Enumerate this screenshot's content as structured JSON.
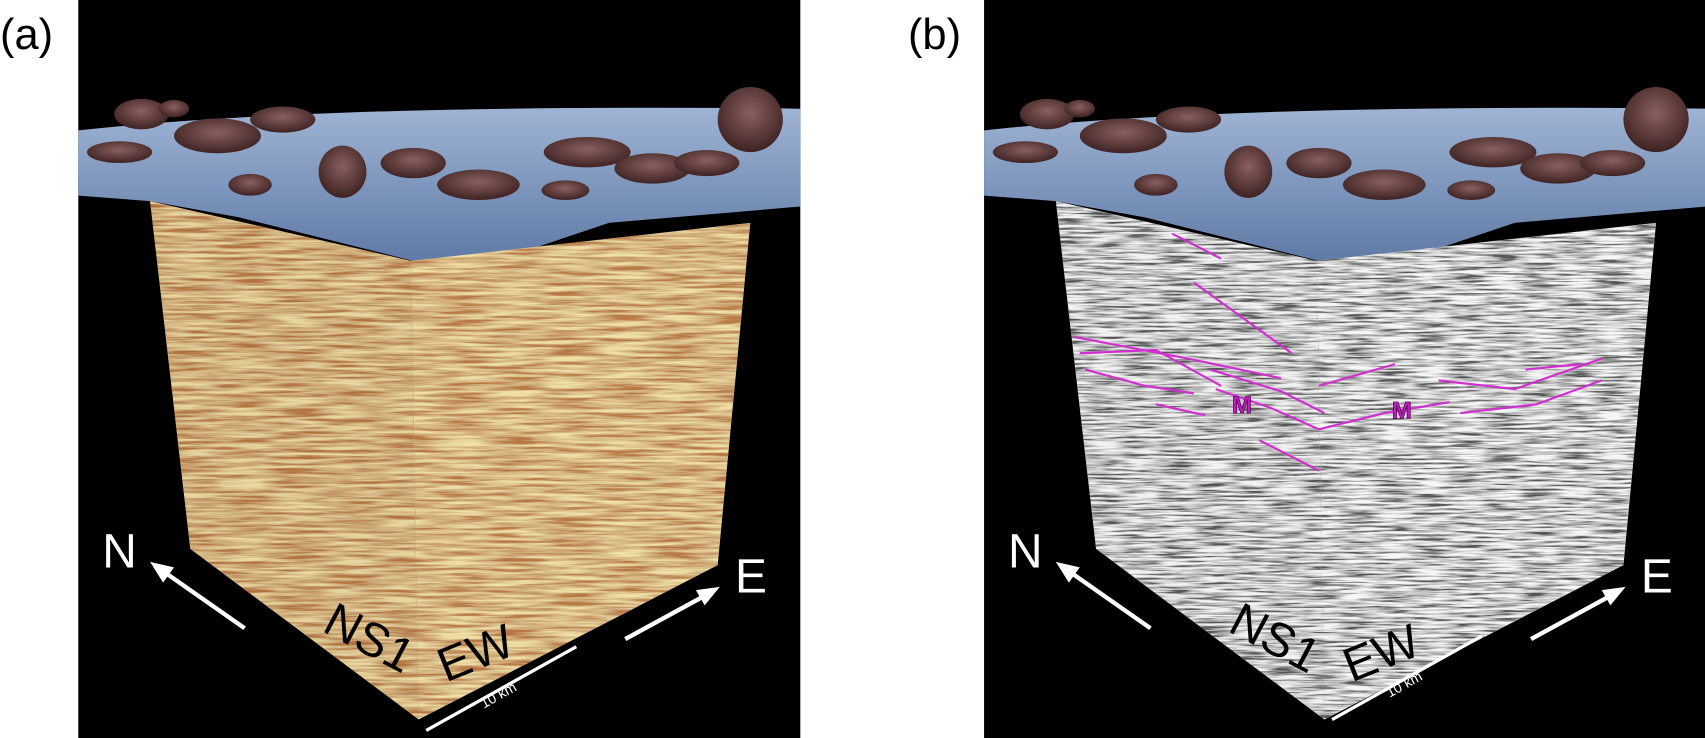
{
  "panels": [
    {
      "label": "(a)",
      "north": "N",
      "east": "E",
      "section_ns": "NS1",
      "section_ew": "EW",
      "scale": "10 km"
    },
    {
      "label": "(b)",
      "north": "N",
      "east": "E",
      "section_ns": "NS1",
      "section_ew": "EW",
      "scale": "10 km",
      "markers": [
        "M",
        "M"
      ]
    }
  ]
}
